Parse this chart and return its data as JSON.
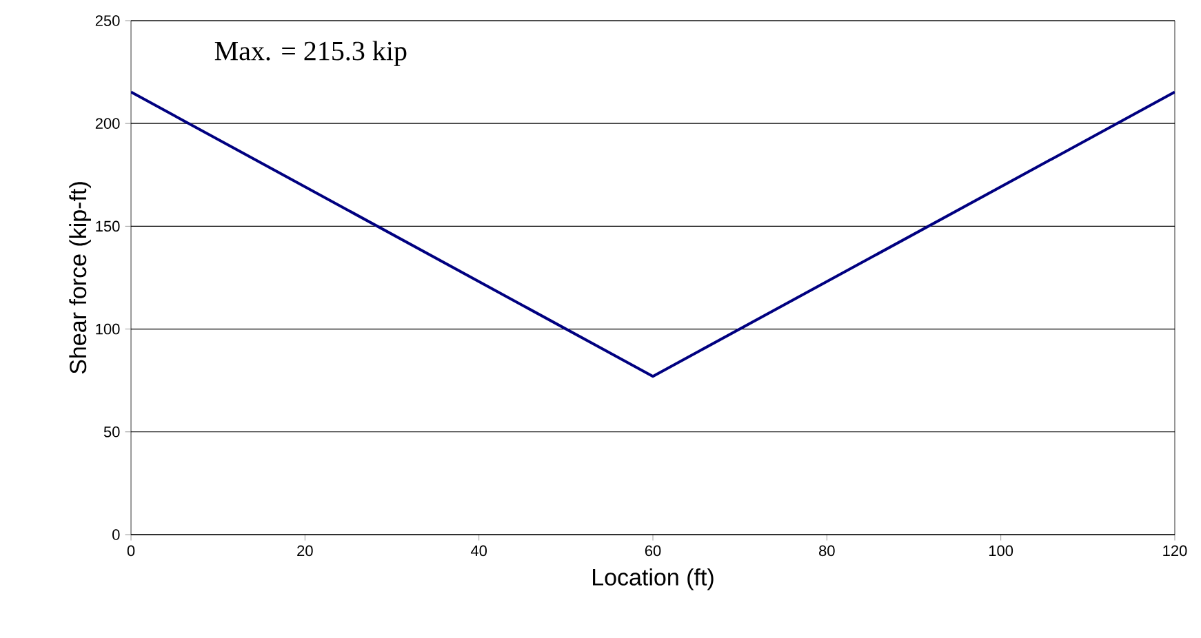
{
  "chart_data": {
    "type": "line",
    "xlabel": "Location (ft)",
    "ylabel": "Shear force (kip-ft)",
    "annotations": [
      "Max. = 215.3 kip"
    ],
    "x": [
      0,
      60,
      120
    ],
    "series": [
      {
        "color": "#000080",
        "values": [
          215.3,
          77,
          215.3
        ]
      }
    ],
    "xlim": [
      0,
      120
    ],
    "xticks": [
      0,
      20,
      40,
      60,
      80,
      100,
      120
    ],
    "ylim": [
      0,
      250
    ],
    "yticks": [
      0,
      50,
      100,
      150,
      200,
      250
    ],
    "grid": "y"
  }
}
